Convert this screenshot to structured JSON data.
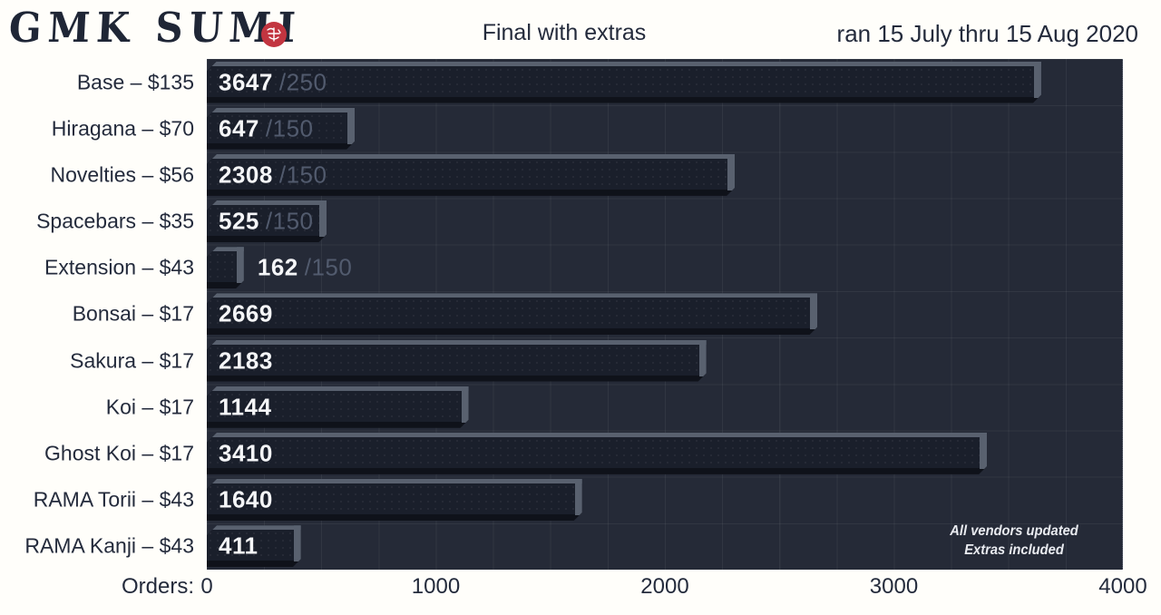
{
  "header": {
    "logo_text": "GMK SUMI",
    "seal_icon": "red-ink-stamp",
    "title": "Final with extras",
    "date_range": "ran 15 July thru 15 Aug 2020"
  },
  "annotation": {
    "line1": "All vendors updated",
    "line2": "Extras included"
  },
  "chart_data": {
    "type": "bar",
    "orientation": "horizontal",
    "title": "Final with extras",
    "xlabel": "Orders:",
    "xlim": [
      0,
      4000
    ],
    "x_ticks": [
      0,
      1000,
      2000,
      3000,
      4000
    ],
    "grid": {
      "vertical_minor_step": 250,
      "horizontal": "row-boundaries"
    },
    "legend": "none",
    "rows": [
      {
        "label": "Base – $135",
        "orders": 3647,
        "moq": 250
      },
      {
        "label": "Hiragana – $70",
        "orders": 647,
        "moq": 150
      },
      {
        "label": "Novelties – $56",
        "orders": 2308,
        "moq": 150
      },
      {
        "label": "Spacebars – $35",
        "orders": 525,
        "moq": 150
      },
      {
        "label": "Extension – $43",
        "orders": 162,
        "moq": 150
      },
      {
        "label": "Bonsai – $17",
        "orders": 2669,
        "moq": null
      },
      {
        "label": "Sakura – $17",
        "orders": 2183,
        "moq": null
      },
      {
        "label": "Koi – $17",
        "orders": 1144,
        "moq": null
      },
      {
        "label": "Ghost Koi – $17",
        "orders": 3410,
        "moq": null
      },
      {
        "label": "RAMA Torii – $43",
        "orders": 1640,
        "moq": null
      },
      {
        "label": "RAMA Kanji – $43",
        "orders": 411,
        "moq": null
      }
    ]
  },
  "colors": {
    "page_bg": "#fffefa",
    "text": "#242b3c",
    "plot_bg": "#252a37",
    "bar_body": "#1a1f2b",
    "bar_highlight": "#59616f",
    "bar_shadow": "#0f121a",
    "value_text": "#f5f6f8",
    "moq_text": "#525b6e",
    "seal_red": "#c23540"
  }
}
